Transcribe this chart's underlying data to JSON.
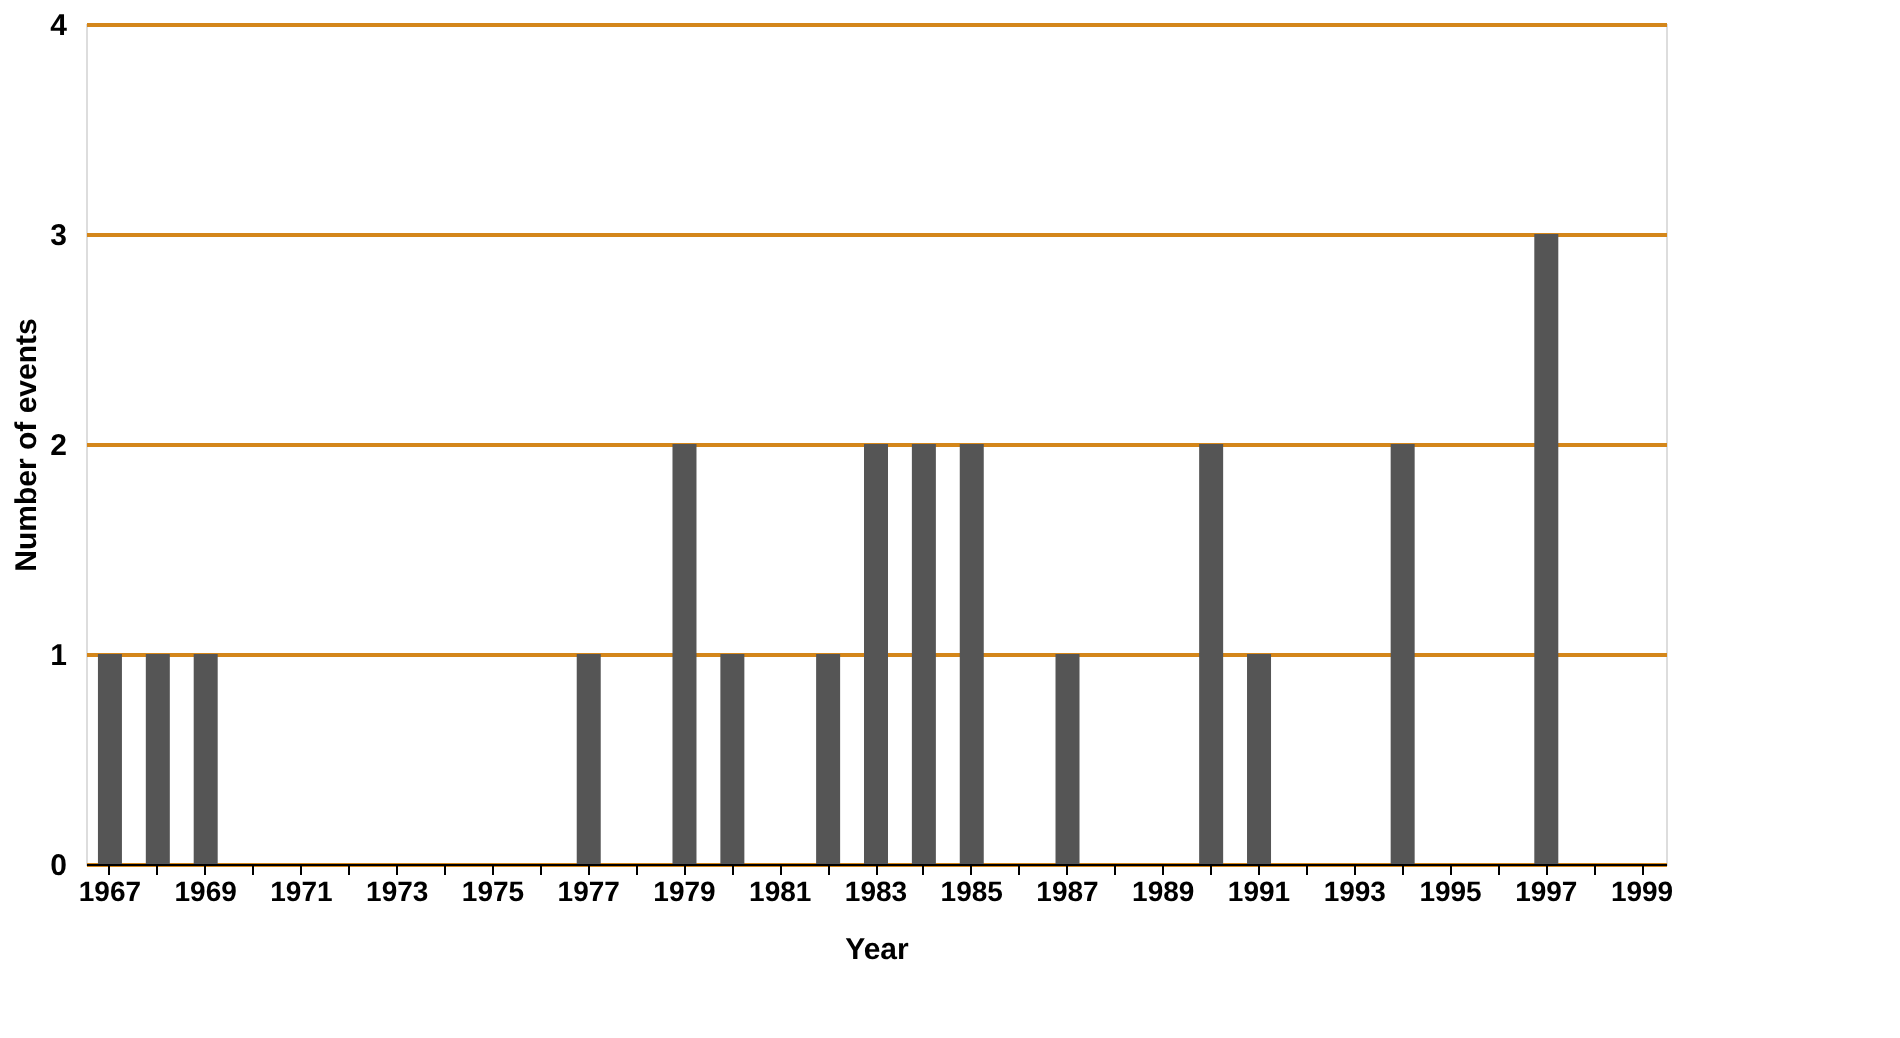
{
  "chart_data": {
    "type": "bar",
    "xlabel": "Year",
    "ylabel": "Number of events",
    "categories": [
      "1967",
      null,
      "1969",
      null,
      "1971",
      null,
      "1973",
      null,
      "1975",
      null,
      "1977",
      null,
      "1979",
      null,
      "1981",
      null,
      "1983",
      null,
      "1985",
      null,
      "1987",
      null,
      "1989",
      null,
      "1991",
      null,
      "1993",
      null,
      "1995",
      null,
      "1997",
      null,
      "1999"
    ],
    "values": [
      1,
      1,
      1,
      null,
      null,
      null,
      null,
      null,
      null,
      null,
      1,
      null,
      2,
      1,
      null,
      1,
      2,
      2,
      2,
      null,
      1,
      null,
      null,
      2,
      1,
      null,
      null,
      2,
      null,
      null,
      3,
      null,
      null
    ],
    "color": "#555555",
    "ylim": [
      0,
      4
    ],
    "yticks": [
      0,
      1,
      2,
      3,
      4
    ],
    "grid": "y"
  }
}
